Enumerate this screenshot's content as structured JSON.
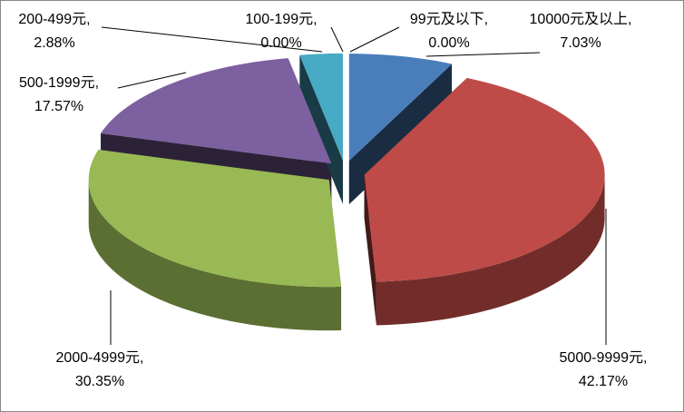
{
  "chart_data": {
    "type": "pie3d",
    "categories": [
      "10000元及以上,",
      "5000-9999元,",
      "2000-4999元,",
      "500-1999元,",
      "200-499元,",
      "100-199元,",
      "99元及以下,"
    ],
    "values": [
      7.03,
      42.17,
      30.35,
      17.57,
      2.88,
      0,
      0
    ],
    "value_labels": [
      "7.03%",
      "42.17%",
      "30.35%",
      "17.57%",
      "2.88%",
      "0.00%",
      "0.00%"
    ],
    "colors": [
      "#4a7ebb",
      "#be4b48",
      "#98b954",
      "#7d60a0",
      "#46aac5",
      "#f79646",
      "#2c4d75"
    ]
  }
}
